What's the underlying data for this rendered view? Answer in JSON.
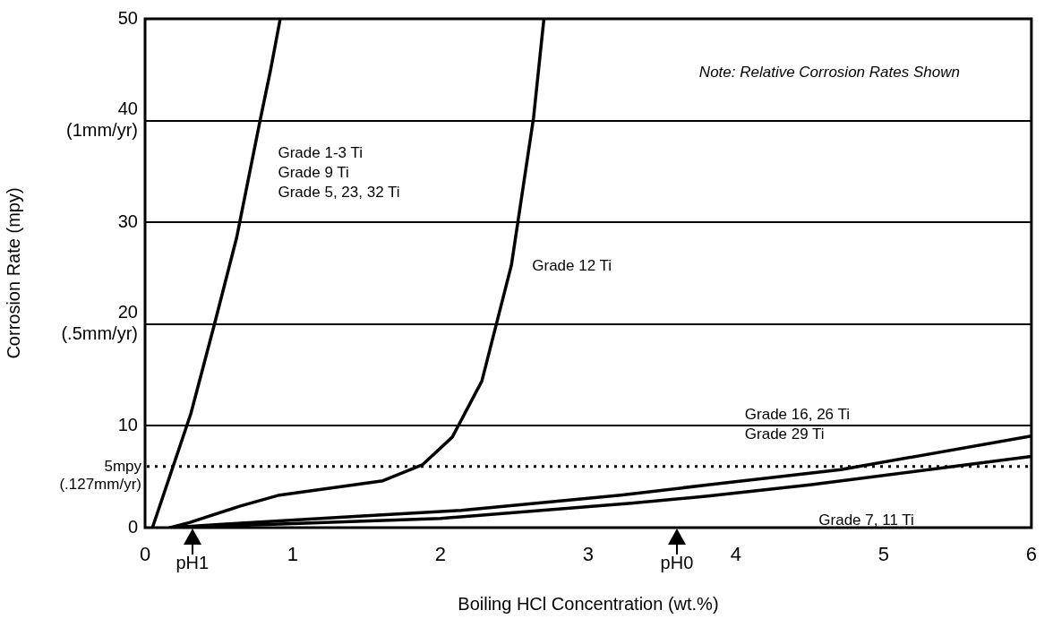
{
  "chart_data": {
    "type": "line",
    "xlabel": "Boiling HCl Concentration (wt.%)",
    "ylabel": "Corrosion Rate (mpy)",
    "xlim": [
      0,
      6
    ],
    "xticks": [
      0,
      1,
      2,
      3,
      4,
      5,
      6
    ],
    "ylim": [
      0,
      50
    ],
    "yticks": [
      0,
      10,
      {
        "value": 20,
        "label": "20\n(.5mm/yr)"
      },
      30,
      {
        "value": 40,
        "label": "40\n(1mm/yr)"
      },
      50
    ],
    "grid": "y",
    "legend": false,
    "marker": "none",
    "line_style": "solid",
    "series": [
      {
        "name": "Grade 1-3 Ti\nGrade 9 Ti\nGrade 5, 23, 32 Ti",
        "color": "#000000",
        "x": [
          0.05,
          0.31,
          0.47,
          0.62,
          0.78,
          0.85,
          0.915
        ],
        "values": [
          0,
          11.2,
          20.0,
          28.5,
          40.1,
          45,
          50
        ]
      },
      {
        "name": "Grade 12 Ti",
        "color": "#000000",
        "x": [
          0.17,
          0.3,
          0.64,
          0.91,
          1.61,
          1.88,
          2.08,
          2.28,
          2.48,
          2.63,
          2.7
        ],
        "values": [
          0,
          0.5,
          2.1,
          3.2,
          4.6,
          6.2,
          8.9,
          14.4,
          25.8,
          40.3,
          50
        ]
      },
      {
        "name": "Grade 16, 26 Ti\nGrade 29 Ti",
        "color": "#000000",
        "x": [
          0.17,
          0.6,
          1.42,
          2.14,
          3.22,
          3.81,
          4.71,
          6
        ],
        "values": [
          0,
          0.4,
          1.1,
          1.7,
          3.2,
          4.2,
          5.7,
          9.0
        ]
      },
      {
        "name": "Grade 7, 11 Ti",
        "color": "#000000",
        "x": [
          0.17,
          1,
          2.0,
          3.29,
          3.81,
          4.5,
          6
        ],
        "values": [
          0,
          0.4,
          0.9,
          2.4,
          3.1,
          4.2,
          7.0
        ]
      }
    ],
    "ref_lines": [
      {
        "axis": "y",
        "value": 6,
        "label": "5mpy\n(.127mm/yr)",
        "line_style": "dotted",
        "color": "#000000"
      }
    ],
    "annotations": [
      "Note: Relative Corrosion Rates Shown",
      "pH1",
      "pH0"
    ]
  }
}
